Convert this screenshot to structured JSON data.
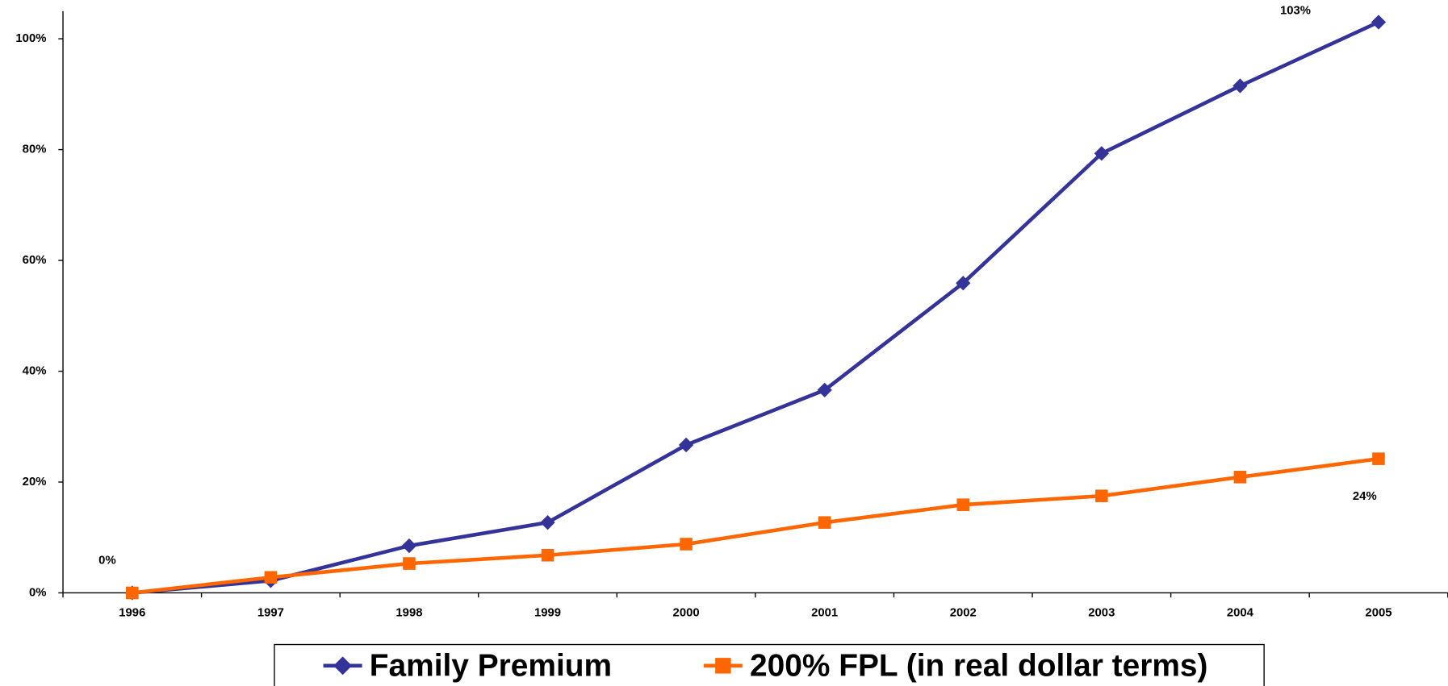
{
  "chart_data": {
    "type": "line",
    "categories": [
      "1996",
      "1997",
      "1998",
      "1999",
      "2000",
      "2001",
      "2002",
      "2003",
      "2004",
      "2005"
    ],
    "series": [
      {
        "name": "Family Premium",
        "color": "#333399",
        "marker": "diamond",
        "values": [
          0,
          2.2,
          8.5,
          12.7,
          26.7,
          36.6,
          55.9,
          79.3,
          91.5,
          103
        ],
        "value_labels": [
          "0%",
          null,
          null,
          null,
          null,
          null,
          null,
          null,
          null,
          "103%"
        ]
      },
      {
        "name": "200% FPL (in real dollar terms)",
        "color": "#ff6600",
        "marker": "square",
        "values": [
          0,
          2.8,
          5.3,
          6.8,
          8.8,
          12.7,
          15.9,
          17.5,
          20.9,
          24.2
        ],
        "value_labels": [
          null,
          null,
          null,
          null,
          null,
          null,
          null,
          null,
          null,
          "24%"
        ]
      }
    ],
    "ylim": [
      0,
      105
    ],
    "yticks": [
      {
        "value": 0,
        "label": "0%"
      },
      {
        "value": 20,
        "label": "20%"
      },
      {
        "value": 40,
        "label": "40%"
      },
      {
        "value": 60,
        "label": "60%"
      },
      {
        "value": 80,
        "label": "80%"
      },
      {
        "value": 100,
        "label": "100%"
      }
    ],
    "grid": false,
    "legend": "bottom"
  }
}
